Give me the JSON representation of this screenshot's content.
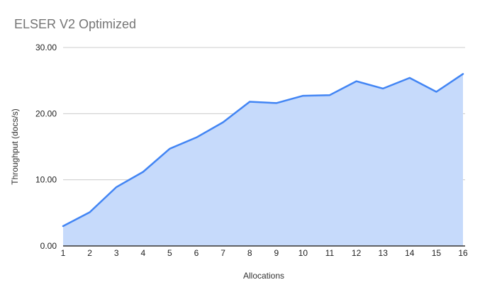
{
  "chart_data": {
    "type": "area",
    "title": "ELSER V2 Optimized",
    "xlabel": "Allocations",
    "ylabel": "Throughput (docs/s)",
    "x": [
      "1",
      "2",
      "3",
      "4",
      "5",
      "6",
      "7",
      "8",
      "9",
      "10",
      "11",
      "12",
      "13",
      "14",
      "15",
      "16"
    ],
    "series": [
      {
        "name": "Throughput (docs/s)",
        "values": [
          3.0,
          5.1,
          8.9,
          11.2,
          14.7,
          16.4,
          18.7,
          21.8,
          21.6,
          22.7,
          22.8,
          24.9,
          23.8,
          25.4,
          23.3,
          26.0
        ]
      }
    ],
    "ylim": [
      0,
      30
    ],
    "yticks": [
      {
        "value": 0,
        "label": "0.00"
      },
      {
        "value": 10,
        "label": "10.00"
      },
      {
        "value": 20,
        "label": "20.00"
      },
      {
        "value": 30,
        "label": "30.00"
      }
    ],
    "grid": true,
    "legend_position": "none",
    "colors": {
      "line": "#4285f4",
      "fill": "#c6dafb",
      "grid": "#cccccc",
      "axis": "#333333",
      "tick_label": "#222222",
      "title": "#757575",
      "axis_title": "#333333"
    }
  }
}
